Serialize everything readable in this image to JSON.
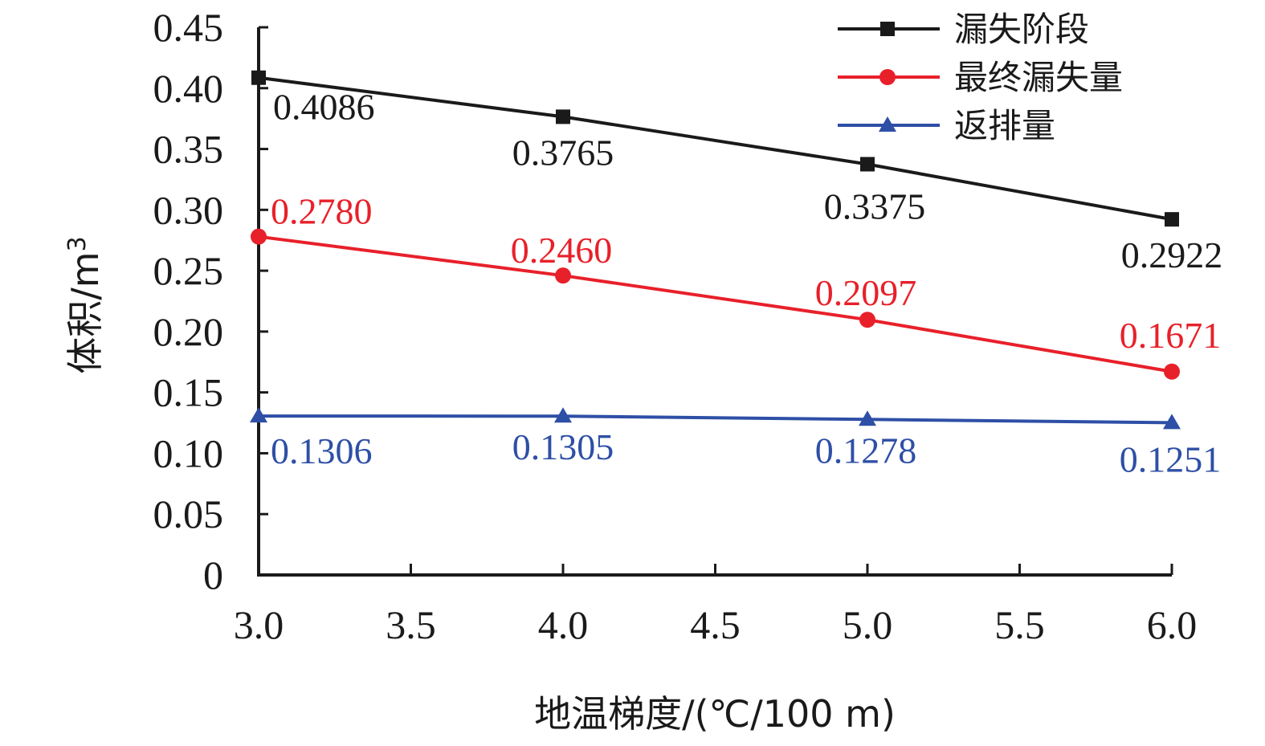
{
  "chart_data": {
    "type": "line",
    "x": [
      3.0,
      4.0,
      5.0,
      6.0
    ],
    "xlabel": "地温梯度/(℃/100 m)",
    "ylabel": "体积/m",
    "ylabel_sup": "3",
    "xlim": [
      3.0,
      6.0
    ],
    "ylim": [
      0,
      0.45
    ],
    "xticks": [
      3.0,
      3.5,
      4.0,
      4.5,
      5.0,
      5.5,
      6.0
    ],
    "xtick_labels": [
      "3.0",
      "3.5",
      "4.0",
      "4.5",
      "5.0",
      "5.5",
      "6.0"
    ],
    "yticks": [
      0,
      0.05,
      0.1,
      0.15,
      0.2,
      0.25,
      0.3,
      0.35,
      0.4,
      0.45
    ],
    "ytick_labels": [
      "0",
      "0.05",
      "0.10",
      "0.15",
      "0.20",
      "0.25",
      "0.30",
      "0.35",
      "0.40",
      "0.45"
    ],
    "grid": false,
    "legend_position": "top-right",
    "series": [
      {
        "name": "漏失阶段",
        "color": "#1a1a1a",
        "marker": "square",
        "values": [
          0.4086,
          0.3765,
          0.3375,
          0.2922
        ],
        "labels": [
          "0.4086",
          "0.3765",
          "0.3375",
          "0.2922"
        ]
      },
      {
        "name": "最终漏失量",
        "color": "#e8202a",
        "marker": "circle",
        "values": [
          0.278,
          0.246,
          0.2097,
          0.1671
        ],
        "labels": [
          "0.2780",
          "0.2460",
          "0.2097",
          "0.1671"
        ]
      },
      {
        "name": "返排量",
        "color": "#2e4fa6",
        "marker": "triangle",
        "values": [
          0.1306,
          0.1305,
          0.1278,
          0.1251
        ],
        "labels": [
          "0.1306",
          "0.1305",
          "0.1278",
          "0.1251"
        ]
      }
    ]
  }
}
